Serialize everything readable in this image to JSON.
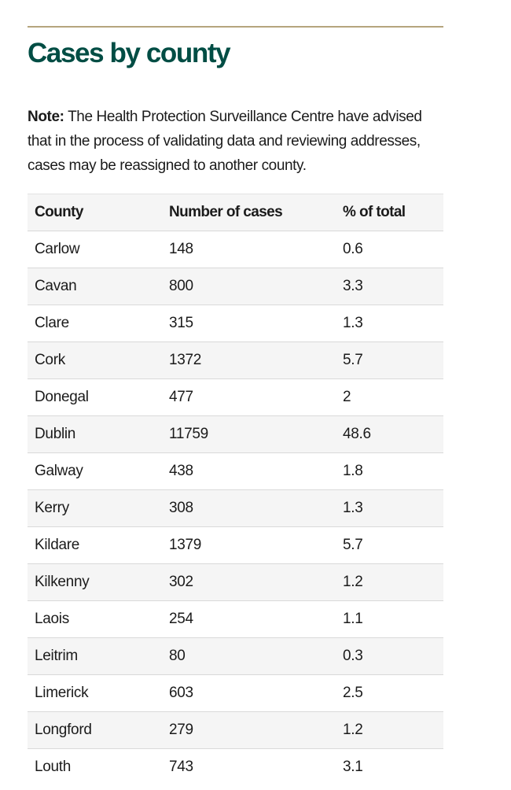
{
  "section": {
    "title": "Cases by county",
    "note_label": "Note:",
    "note_text": " The Health Protection Surveillance Centre have advised that in the process of validating data and reviewing addresses, cases may be reassigned to another county."
  },
  "table": {
    "headers": {
      "county": "County",
      "cases": "Number of cases",
      "percent": "% of total"
    },
    "rows": [
      {
        "county": "Carlow",
        "cases": "148",
        "percent": "0.6"
      },
      {
        "county": "Cavan",
        "cases": "800",
        "percent": "3.3"
      },
      {
        "county": "Clare",
        "cases": "315",
        "percent": "1.3"
      },
      {
        "county": "Cork",
        "cases": "1372",
        "percent": "5.7"
      },
      {
        "county": "Donegal",
        "cases": "477",
        "percent": "2"
      },
      {
        "county": "Dublin",
        "cases": "11759",
        "percent": "48.6"
      },
      {
        "county": "Galway",
        "cases": "438",
        "percent": "1.8"
      },
      {
        "county": "Kerry",
        "cases": "308",
        "percent": "1.3"
      },
      {
        "county": "Kildare",
        "cases": "1379",
        "percent": "5.7"
      },
      {
        "county": "Kilkenny",
        "cases": "302",
        "percent": "1.2"
      },
      {
        "county": "Laois",
        "cases": "254",
        "percent": "1.1"
      },
      {
        "county": "Leitrim",
        "cases": "80",
        "percent": "0.3"
      },
      {
        "county": "Limerick",
        "cases": "603",
        "percent": "2.5"
      },
      {
        "county": "Longford",
        "cases": "279",
        "percent": "1.2"
      },
      {
        "county": "Louth",
        "cases": "743",
        "percent": "3.1"
      }
    ]
  },
  "colors": {
    "title": "#004d44",
    "rule": "#b5a57d",
    "stripe": "#f5f5f5",
    "text": "#1b1b1b"
  }
}
